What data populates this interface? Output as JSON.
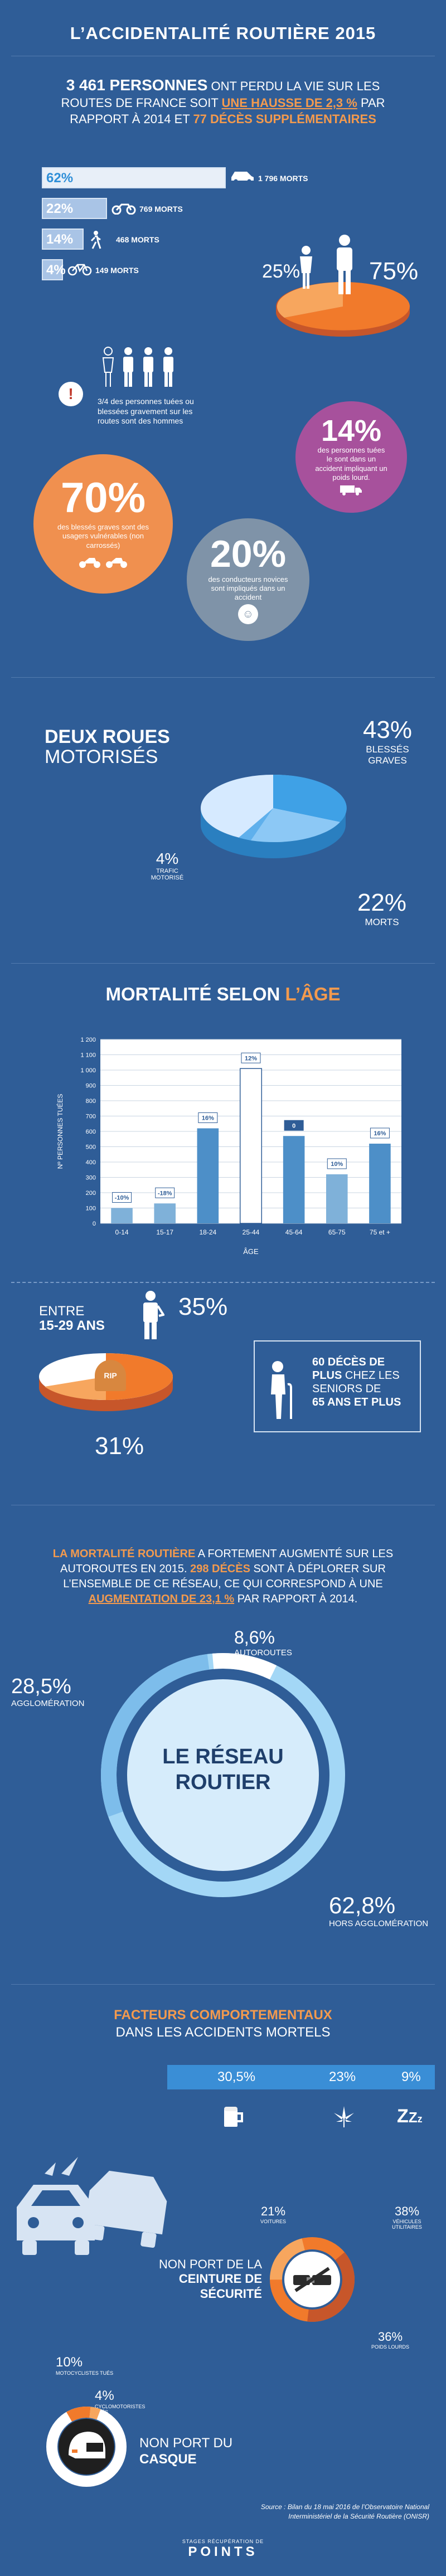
{
  "header": {
    "title": "L’ACCIDENTALITÉ ROUTIÈRE 2015"
  },
  "intro": {
    "headline_bold": "3 461 PERSONNES",
    "headline_rest": " ONT PERDU LA VIE SUR LES ROUTES DE FRANCE SOIT ",
    "hausse": "UNE HAUSSE DE 2,3 %",
    "middle": " PAR RAPPORT À 2014 ET ",
    "deces": "77 DÉCÈS SUPPLÉMENTAIRES"
  },
  "vehicles": [
    {
      "pct": "62%",
      "label": "1 796 MORTS",
      "icon": "car-icon",
      "fraction": 0.62
    },
    {
      "pct": "22%",
      "label": "769 MORTS",
      "icon": "motorcycle-icon",
      "fraction": 0.22
    },
    {
      "pct": "14%",
      "label": "468 MORTS",
      "icon": "pedestrian-icon",
      "fraction": 0.14
    },
    {
      "pct": "4%",
      "label": "149 MORTS",
      "icon": "bicycle-icon",
      "fraction": 0.04
    }
  ],
  "gender": {
    "women": "25%",
    "men": "75%",
    "note": "3/4 des personnes tuées ou blessées gravement sur les routes sont des hommes"
  },
  "bubbles": {
    "poids_lourd_pct": "14%",
    "poids_lourd_text": "des personnes tuées le sont dans un accident impliquant un poids lourd.",
    "vulnerables_pct": "70%",
    "vulnerables_text": "des blessés graves sont des usagers vulnérables (non carrossés)",
    "novices_pct": "20%",
    "novices_text": "des conducteurs novices sont impliqués dans un accident"
  },
  "deux_roues": {
    "title_bold": "DEUX ROUES",
    "title_rest": "MOTORISÉS",
    "blesses_pct": "43%",
    "blesses_label": "BLESSÉS GRAVES",
    "trafic_pct": "4%",
    "trafic_label": "TRAFIC MOTORISÉ",
    "morts_pct": "22%",
    "morts_label": "MORTS",
    "colors": {
      "light": "#d6eaff",
      "mid": "#8cc8f5",
      "strong": "#3fa1e6"
    }
  },
  "age_section": {
    "title_white": "MORTALITÉ SELON ",
    "title_orange": "L’ÂGE"
  },
  "chart_data": {
    "type": "bar",
    "categories": [
      "0-14",
      "15-17",
      "18-24",
      "25-44",
      "45-64",
      "65-75",
      "75 et +"
    ],
    "values": [
      100,
      130,
      620,
      1010,
      570,
      320,
      520
    ],
    "data_labels": [
      "-10%",
      "-18%",
      "16%",
      "12%",
      "0",
      "10%",
      "16%"
    ],
    "xlabel": "ÂGE",
    "ylabel": "Nº PERSONNES TUÉES",
    "ylim": [
      0,
      1200
    ],
    "yticks": [
      "0",
      "100",
      "200",
      "300",
      "400",
      "500",
      "600",
      "700",
      "800",
      "900",
      "1 000",
      "1 100",
      "1 200"
    ],
    "grid": true
  },
  "young": {
    "entre": "ENTRE",
    "range": "15-29 ANS",
    "pct_top": "35%",
    "pct_bottom": "31%",
    "rip": "RIP"
  },
  "seniors": {
    "line1": "60 DÉCÈS DE",
    "line2_bold": "PLUS",
    "line2_rest": " CHEZ LES SENIORS DE",
    "line3": "65 ANS ET PLUS"
  },
  "autoroutes": {
    "lead": "LA MORTALITÉ ROUTIÈRE",
    "text1": " A FORTEMENT AUGMENTÉ SUR LES AUTOROUTES EN 2015. ",
    "deces": "298 DÉCÈS",
    "text2": " SONT À DÉPLORER SUR L’ENSEMBLE DE CE RÉSEAU, CE QUI CORRESPOND À UNE ",
    "augmentation": "AUGMENTATION DE 23,1 %",
    "text3": "  PAR RAPPORT À 2014."
  },
  "reseau": {
    "center_line1": "LE RÉSEAU",
    "center_line2": "ROUTIER",
    "autoroutes_pct": "8,6%",
    "autoroutes_label": "AUTOROUTES",
    "agglo_pct": "28,5%",
    "agglo_label": "AGGLOMÉRATION",
    "hors_pct": "62,8%",
    "hors_label": "HORS AGGLOMÉRATION"
  },
  "facteurs": {
    "title_orange": "FACTEURS COMPORTEMENTAUX",
    "title_rest": "DANS LES ACCIDENTS MORTELS",
    "items": [
      {
        "pct": "30,5%",
        "icon": "beer-icon"
      },
      {
        "pct": "23%",
        "icon": "cannabis-icon"
      },
      {
        "pct": "9%",
        "icon": "sleep-icon"
      }
    ],
    "sleep_glyph": "Z",
    "sleep_glyph_small": "z"
  },
  "ceinture": {
    "label1": "NON PORT DE LA",
    "label2": "CEINTURE DE SÉCURITÉ",
    "voitures_pct": "21%",
    "voitures_label": "VOITURES",
    "utilitaires_pct": "38%",
    "utilitaires_label": "VÉHICULES UTILITAIRES",
    "poids_lourds_pct": "36%",
    "poids_lourds_label": "POIDS LOURDS"
  },
  "casque": {
    "moto_pct": "10%",
    "moto_label": "MOTOCYCLISTES TUÉS",
    "cyclo_pct": "4%",
    "cyclo_label": "CYCLOMOTORISTES TUÉS",
    "label1": "NON PORT DU",
    "label2": "CASQUE"
  },
  "footer": {
    "source": "Source : Bilan du 18 mai 2016 de l’Observatoire National Interministériel de la Sécurité Routière (ONISR)",
    "brand_top": "STAGES RÉCUPÉRATION DE",
    "brand_main": "POINTS"
  }
}
